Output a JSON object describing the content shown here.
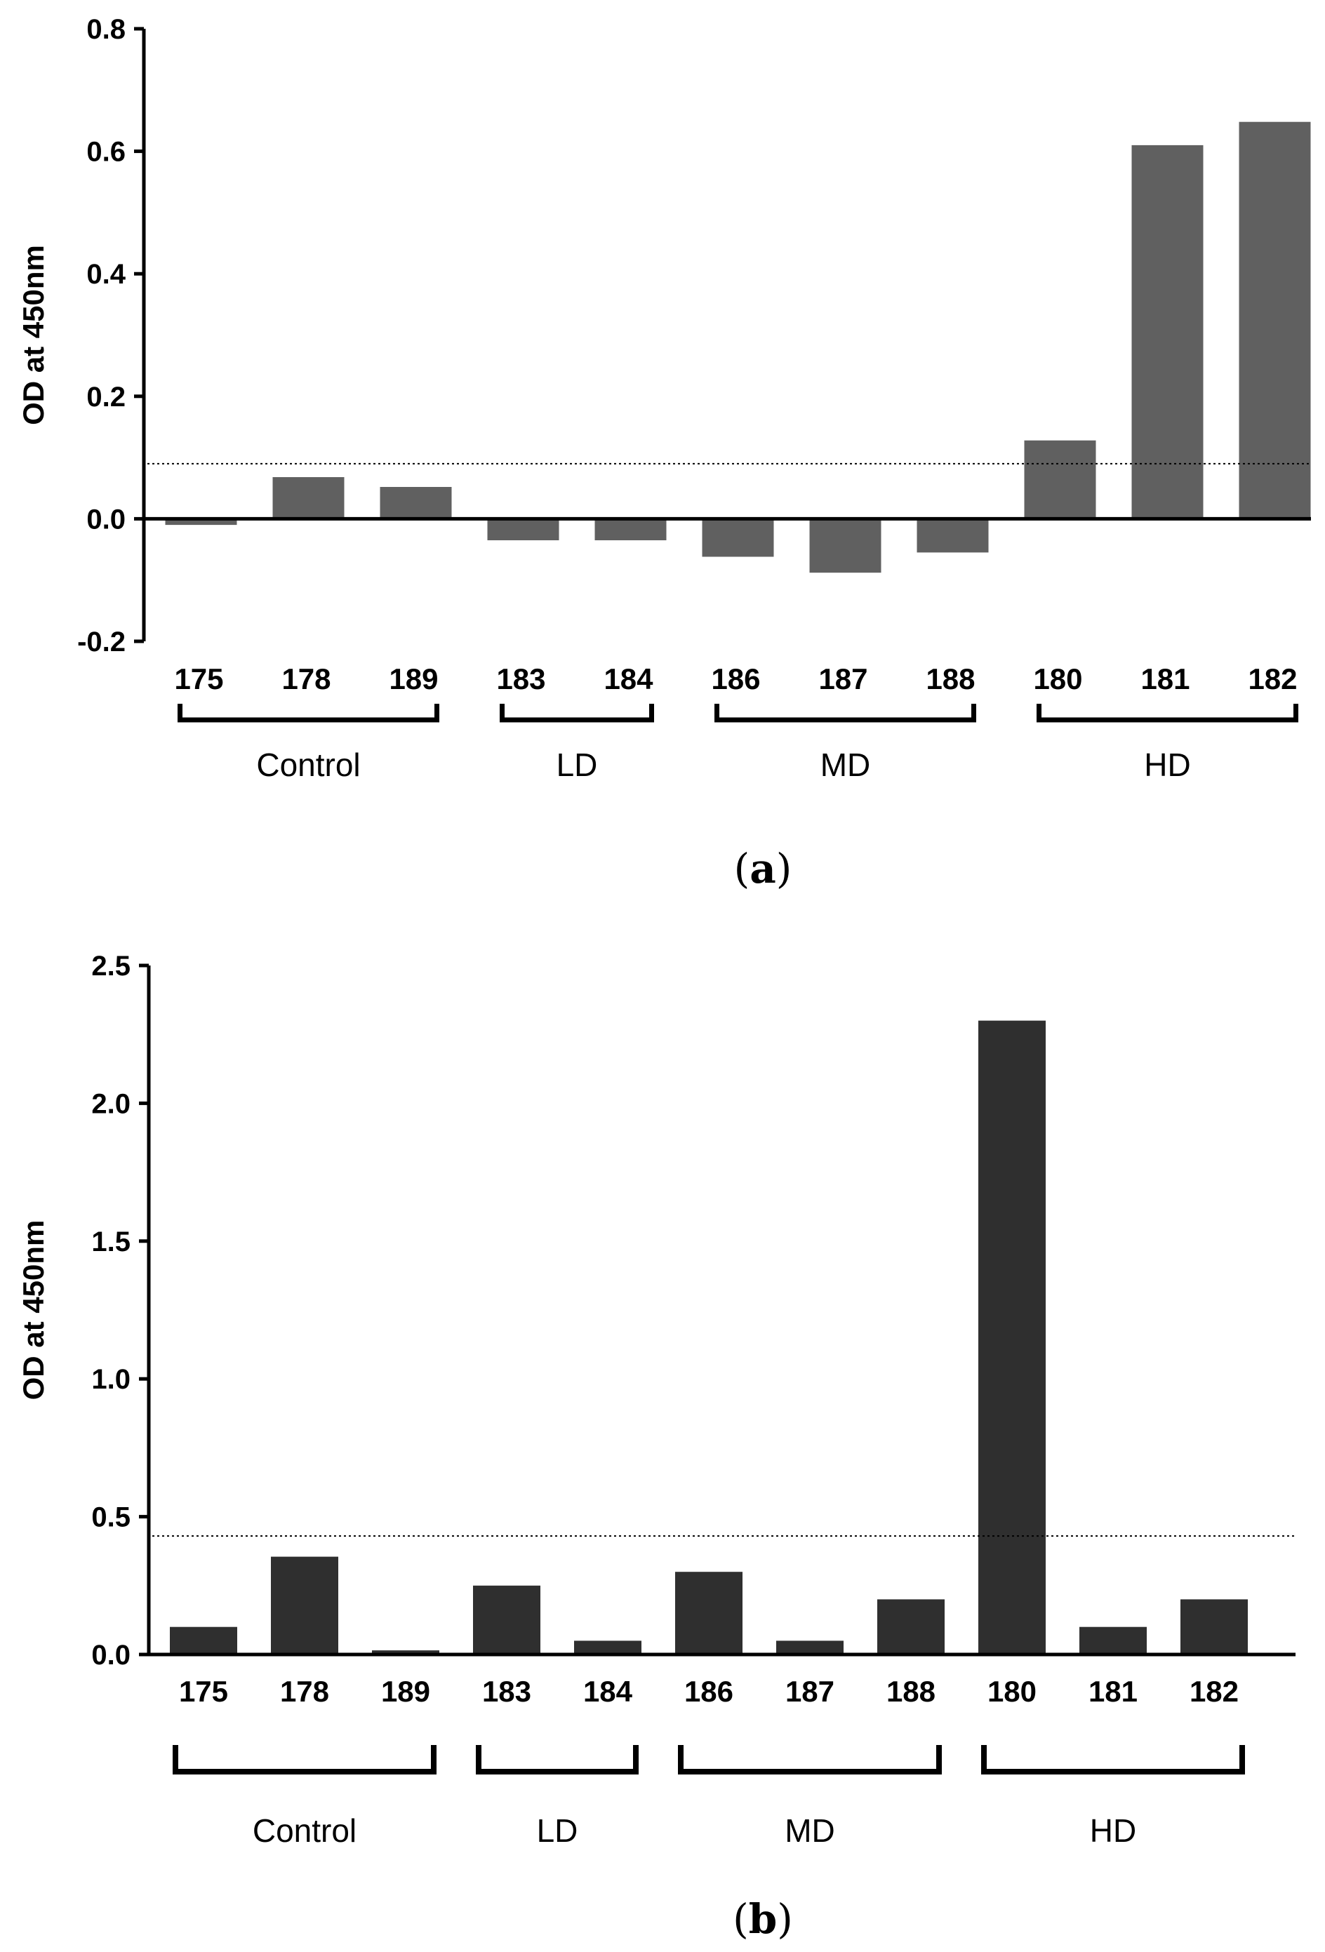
{
  "chart_data": [
    {
      "type": "bar",
      "panel": "a",
      "categories": [
        "175",
        "178",
        "189",
        "183",
        "184",
        "186",
        "187",
        "188",
        "180",
        "181",
        "182"
      ],
      "values": [
        -0.01,
        0.068,
        0.052,
        -0.035,
        -0.035,
        -0.062,
        -0.088,
        -0.055,
        0.128,
        0.61,
        0.648
      ],
      "ylim": [
        -0.2,
        0.8
      ],
      "yticks": [
        "-0.2",
        "0.0",
        "0.2",
        "0.4",
        "0.6",
        "0.8"
      ],
      "ytick_values": [
        -0.2,
        0.0,
        0.2,
        0.4,
        0.6,
        0.8
      ],
      "ylabel": "OD at 450nm",
      "xlabel": "",
      "cutoff": 0.09,
      "bar_color": "#606060",
      "groups": [
        {
          "label": "Control",
          "start": 0,
          "end": 2
        },
        {
          "label": "LD",
          "start": 3,
          "end": 4
        },
        {
          "label": "MD",
          "start": 5,
          "end": 7
        },
        {
          "label": "HD",
          "start": 8,
          "end": 10
        }
      ],
      "caption_open": "(",
      "caption_letter": "a",
      "caption_close": ")"
    },
    {
      "type": "bar",
      "panel": "b",
      "categories": [
        "175",
        "178",
        "189",
        "183",
        "184",
        "186",
        "187",
        "188",
        "180",
        "181",
        "182"
      ],
      "values": [
        0.1,
        0.355,
        0.015,
        0.25,
        0.05,
        0.3,
        0.05,
        0.2,
        2.3,
        0.1,
        0.2
      ],
      "ylim": [
        0.0,
        2.5
      ],
      "yticks": [
        "0.0",
        "0.5",
        "1.0",
        "1.5",
        "2.0",
        "2.5"
      ],
      "ytick_values": [
        0.0,
        0.5,
        1.0,
        1.5,
        2.0,
        2.5
      ],
      "ylabel": "OD at 450nm",
      "xlabel": "",
      "cutoff": 0.43,
      "bar_color": "#2f2f2f",
      "groups": [
        {
          "label": "Control",
          "start": 0,
          "end": 2
        },
        {
          "label": "LD",
          "start": 3,
          "end": 4
        },
        {
          "label": "MD",
          "start": 5,
          "end": 7
        },
        {
          "label": "HD",
          "start": 8,
          "end": 10
        }
      ],
      "caption_open": "(",
      "caption_letter": "b",
      "caption_close": ")"
    }
  ]
}
